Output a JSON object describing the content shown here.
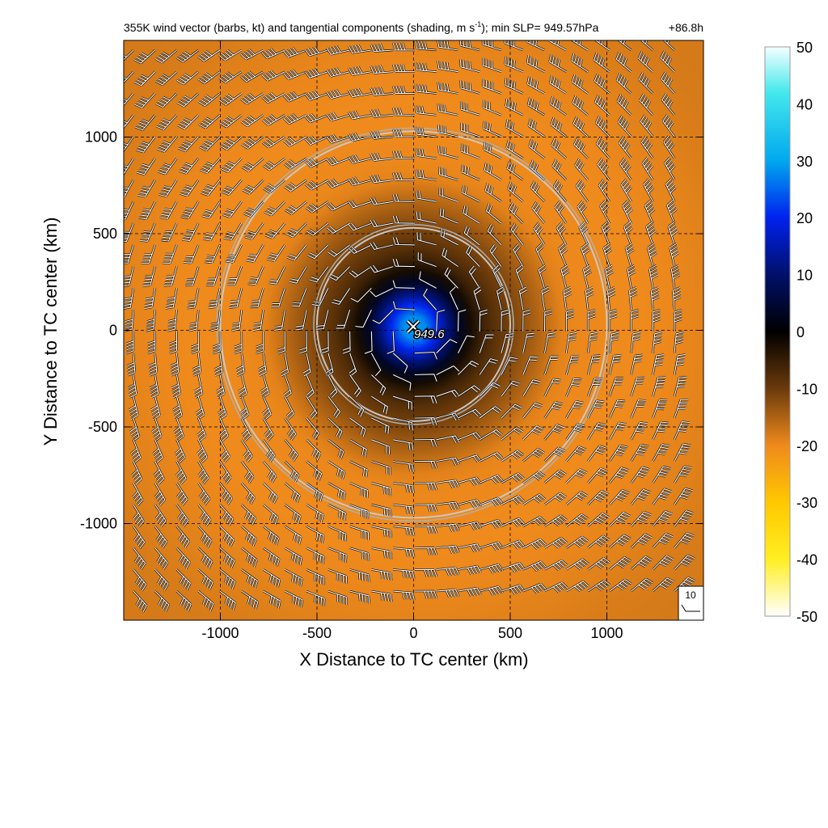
{
  "chart_data": {
    "type": "heatmap",
    "title": "355K wind vector (barbs, kt) and tangential components (shading, m s",
    "title_superscript": "-1",
    "title_rest": "); min SLP= 949.57hPa",
    "time_label": "+86.8h",
    "xlabel": "X Distance to TC center (km)",
    "ylabel": "Y Distance to TC center (km)",
    "xlim": [
      -1500,
      1500
    ],
    "ylim": [
      -1500,
      1500
    ],
    "x_ticks": [
      -1000,
      -500,
      0,
      500,
      1000
    ],
    "y_ticks": [
      -1000,
      -500,
      0,
      500,
      1000
    ],
    "grid": true,
    "center_marker": {
      "x": 0,
      "y": 0,
      "label": "949.6"
    },
    "range_rings_km": [
      {
        "x": 0,
        "y": 30,
        "radius": 500
      },
      {
        "x": 0,
        "y": 30,
        "radius": 1000
      }
    ],
    "colorbar": {
      "min": -50,
      "max": 50,
      "ticks": [
        50,
        40,
        30,
        20,
        10,
        0,
        -10,
        -20,
        -30,
        -40,
        -50
      ],
      "stops": [
        {
          "value": 50,
          "color": "#f5ffff"
        },
        {
          "value": 42,
          "color": "#44e8ec"
        },
        {
          "value": 30,
          "color": "#00a8ee"
        },
        {
          "value": 20,
          "color": "#0022ee"
        },
        {
          "value": 10,
          "color": "#00106a"
        },
        {
          "value": 0,
          "color": "#000000"
        },
        {
          "value": -10,
          "color": "#6a3a0a"
        },
        {
          "value": -20,
          "color": "#ef8a1c"
        },
        {
          "value": -30,
          "color": "#ffc800"
        },
        {
          "value": -40,
          "color": "#ffee22"
        },
        {
          "value": -50,
          "color": "#ffffff"
        }
      ]
    },
    "tangential_wind_field": {
      "peak_negative_ms": -20,
      "peak_radius_km": 1100,
      "core_positive_ms": 30,
      "core_radius_km": 200
    },
    "wind_barbs": {
      "units": "kt",
      "rotation": "clockwise",
      "reference_label": "10"
    }
  }
}
